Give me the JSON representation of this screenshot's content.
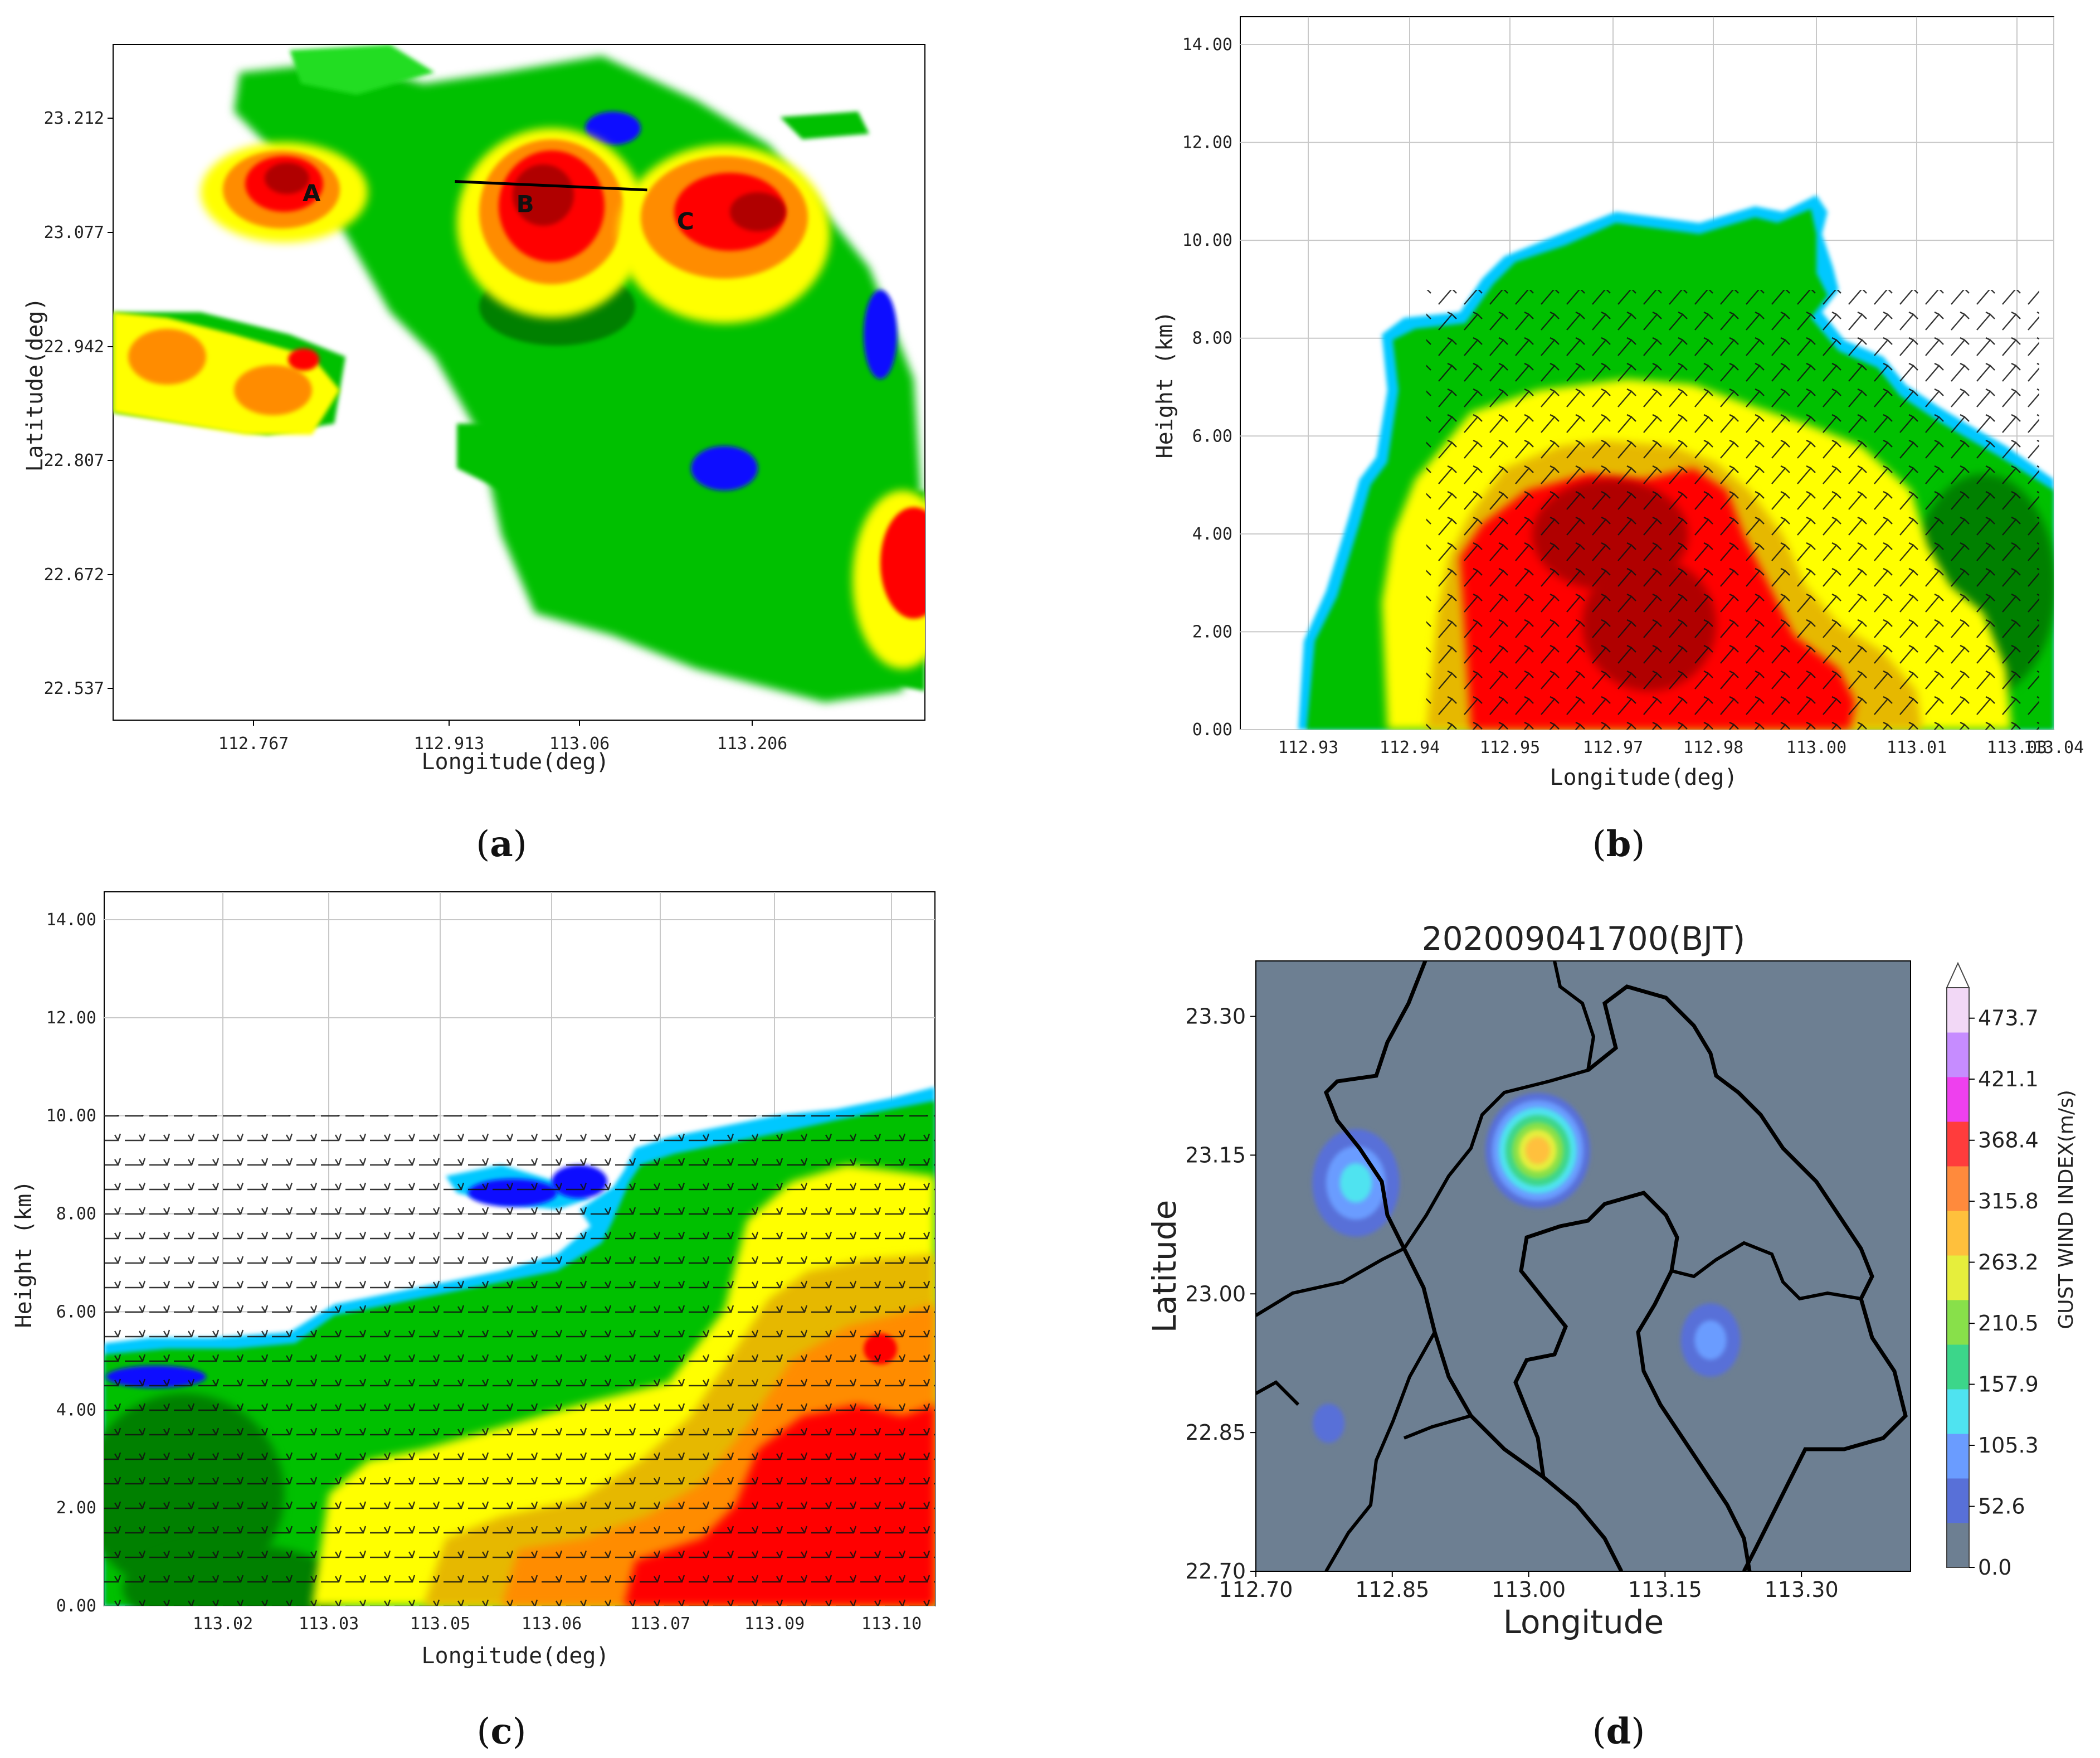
{
  "colors": {
    "refl": [
      "#1010ff",
      "#00c8ff",
      "#008000",
      "#00c000",
      "#22dd22",
      "#ffff00",
      "#e6b800",
      "#ff8c00",
      "#ff0000",
      "#b00000"
    ],
    "gust": [
      "#6d7f92",
      "#5870d8",
      "#6a9cff",
      "#4fe3f0",
      "#3cd68a",
      "#88e04a",
      "#e6ee3c",
      "#ffc03c",
      "#ff8a3c",
      "#ff3c3c",
      "#ee40ee",
      "#c68cff",
      "#f2d8f6"
    ]
  },
  "panel_labels": {
    "a": "a",
    "b": "b",
    "c": "c",
    "d": "d"
  },
  "chart_data": [
    {
      "panel": "a",
      "type": "heatmap",
      "xlabel": "Longitude(deg)",
      "ylabel": "Latitude(deg)",
      "xticks": [
        "112.767",
        "112.913",
        "113.06",
        "113.206"
      ],
      "yticks": [
        "23.212",
        "23.077",
        "22.942",
        "22.807",
        "22.672",
        "22.537"
      ],
      "xlim": [
        112.64,
        113.4
      ],
      "ylim": [
        22.5,
        23.29
      ],
      "cells": [
        {
          "label": "A",
          "lon": 112.83,
          "lat": 23.107
        },
        {
          "label": "B",
          "lon": 113.03,
          "lat": 23.094
        },
        {
          "label": "C",
          "lon": 113.18,
          "lat": 23.074
        }
      ],
      "cross_section": {
        "lon": [
          112.96,
          113.14
        ],
        "lat": [
          23.13,
          23.12
        ]
      }
    },
    {
      "panel": "b",
      "type": "heatmap",
      "xlabel": "Longitude(deg)",
      "ylabel": "Height (km)",
      "xticks": [
        "112.93",
        "112.94",
        "112.95",
        "112.97",
        "112.98",
        "113.00",
        "113.01",
        "113.03",
        "113.04"
      ],
      "yticks": [
        "0.00",
        "2.00",
        "4.00",
        "6.00",
        "8.00",
        "10.00",
        "12.00",
        "14.00"
      ],
      "ylim": [
        0,
        14
      ]
    },
    {
      "panel": "c",
      "type": "heatmap",
      "xlabel": "Longitude(deg)",
      "ylabel": "Height (km)",
      "xticks": [
        "113.02",
        "113.03",
        "113.05",
        "113.06",
        "113.07",
        "113.09",
        "113.10"
      ],
      "yticks": [
        "0.00",
        "2.00",
        "4.00",
        "6.00",
        "8.00",
        "10.00",
        "12.00",
        "14.00"
      ],
      "ylim": [
        0,
        14
      ]
    },
    {
      "panel": "d",
      "type": "heatmap",
      "title": "202009041700(BJT)",
      "xlabel": "Longitude",
      "ylabel": "Latitude",
      "xticks": [
        "112.70",
        "112.85",
        "113.00",
        "113.15",
        "113.30"
      ],
      "yticks": [
        "22.70",
        "22.85",
        "23.00",
        "23.15",
        "23.30"
      ],
      "xlim": [
        112.7,
        113.42
      ],
      "ylim": [
        22.7,
        23.36
      ],
      "colorbar": {
        "label": "GUST WIND INDEX(m/s)",
        "ticks": [
          "0.0",
          "52.6",
          "105.3",
          "157.9",
          "210.5",
          "263.2",
          "315.8",
          "368.4",
          "421.1",
          "473.7"
        ],
        "values": [
          0.0,
          52.6,
          105.3,
          157.9,
          210.5,
          263.2,
          315.8,
          368.4,
          421.1,
          473.7
        ],
        "max": 500
      },
      "hotspots": [
        {
          "lon": 113.01,
          "lat": 23.155,
          "value": 300
        },
        {
          "lon": 112.81,
          "lat": 23.12,
          "value": 110
        },
        {
          "lon": 112.78,
          "lat": 22.86,
          "value": 60
        },
        {
          "lon": 113.2,
          "lat": 22.95,
          "value": 65
        }
      ]
    }
  ]
}
